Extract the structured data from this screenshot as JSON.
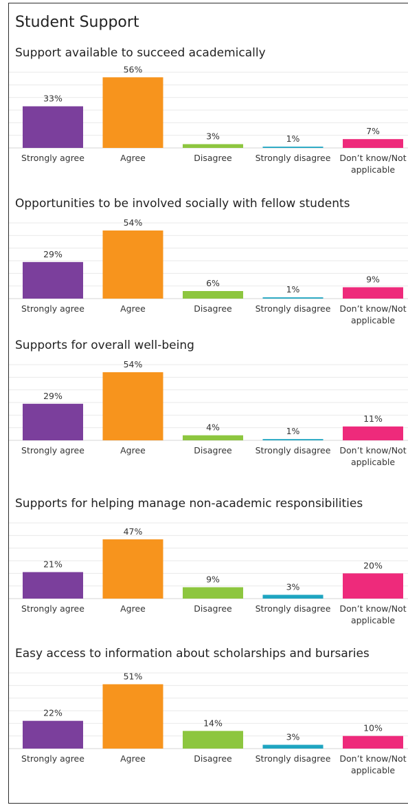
{
  "page_title": "Student Support",
  "colors": {
    "strongly_agree": "#7b3f9c",
    "agree": "#f7941d",
    "disagree": "#8dc63f",
    "strongly_disagree": "#1fa5c1",
    "dont_know": "#ee2a7b",
    "gridline": "#e9e9e9"
  },
  "chart_data": [
    {
      "type": "bar",
      "title": "Support available to succeed academically",
      "categories": [
        "Strongly agree",
        "Agree",
        "Disagree",
        "Strongly disagree",
        "Don’t know/Not applicable"
      ],
      "values": [
        33,
        56,
        3,
        1,
        7
      ],
      "value_labels": [
        "33%",
        "56%",
        "3%",
        "1%",
        "7%"
      ],
      "ylim": [
        0,
        60
      ],
      "grid": true
    },
    {
      "type": "bar",
      "title": "Opportunities to be involved socially with fellow students",
      "categories": [
        "Strongly agree",
        "Agree",
        "Disagree",
        "Strongly disagree",
        "Don’t know/Not applicable"
      ],
      "values": [
        29,
        54,
        6,
        1,
        9
      ],
      "value_labels": [
        "29%",
        "54%",
        "6%",
        "1%",
        "9%"
      ],
      "ylim": [
        0,
        60
      ],
      "grid": true
    },
    {
      "type": "bar",
      "title": "Supports for overall well-being",
      "categories": [
        "Strongly agree",
        "Agree",
        "Disagree",
        "Strongly disagree",
        "Don’t know/Not applicable"
      ],
      "values": [
        29,
        54,
        4,
        1,
        11
      ],
      "value_labels": [
        "29%",
        "54%",
        "4%",
        "1%",
        "11%"
      ],
      "ylim": [
        0,
        60
      ],
      "grid": true
    },
    {
      "type": "bar",
      "title": "Supports for helping manage non-academic responsibilities",
      "categories": [
        "Strongly agree",
        "Agree",
        "Disagree",
        "Strongly disagree",
        "Don’t know/Not applicable"
      ],
      "values": [
        21,
        47,
        9,
        3,
        20
      ],
      "value_labels": [
        "21%",
        "47%",
        "9%",
        "3%",
        "20%"
      ],
      "ylim": [
        0,
        60
      ],
      "grid": true
    },
    {
      "type": "bar",
      "title": "Easy access to information about scholarships and bursaries",
      "categories": [
        "Strongly agree",
        "Agree",
        "Disagree",
        "Strongly disagree",
        "Don’t know/Not applicable"
      ],
      "values": [
        22,
        51,
        14,
        3,
        10
      ],
      "value_labels": [
        "22%",
        "51%",
        "14%",
        "3%",
        "10%"
      ],
      "ylim": [
        0,
        60
      ],
      "grid": true
    }
  ]
}
